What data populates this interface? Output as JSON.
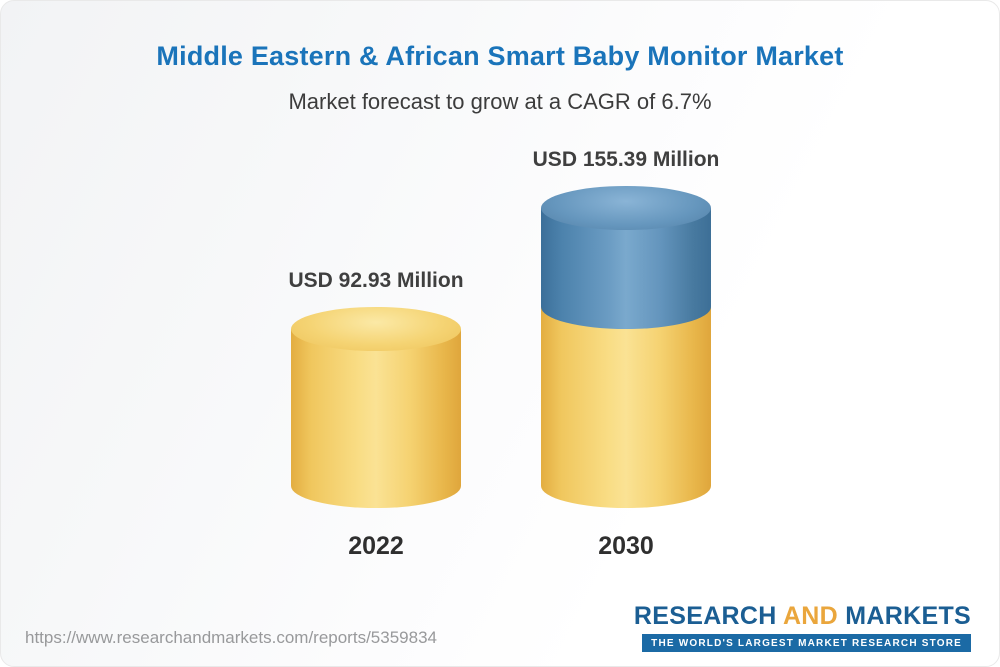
{
  "title": "Middle Eastern & African Smart Baby Monitor Market",
  "subtitle": "Market forecast to grow at a CAGR of 6.7%",
  "chart_data": {
    "type": "bar",
    "categories": [
      "2022",
      "2030"
    ],
    "values": [
      92.93,
      155.39
    ],
    "value_labels": [
      "USD 92.93 Million",
      "USD 155.39 Million"
    ],
    "unit": "USD Million",
    "cagr": "6.7%",
    "style": "3d-cylinder",
    "note": "2030 cylinder is split: lower segment equals the 2022 value (yellow), upper growth segment is blue",
    "colors": {
      "bar_2022": "#f3cc62",
      "bar_2030_growth": "#5b8fb9",
      "bar_2030_base": "#f3cc62",
      "title": "#1a74ba"
    }
  },
  "footer": {
    "url": "https://www.researchandmarkets.com/reports/5359834",
    "logo": {
      "research": "RESEARCH",
      "and": "AND",
      "markets": "MARKETS",
      "tagline": "THE WORLD'S LARGEST MARKET RESEARCH STORE"
    }
  }
}
